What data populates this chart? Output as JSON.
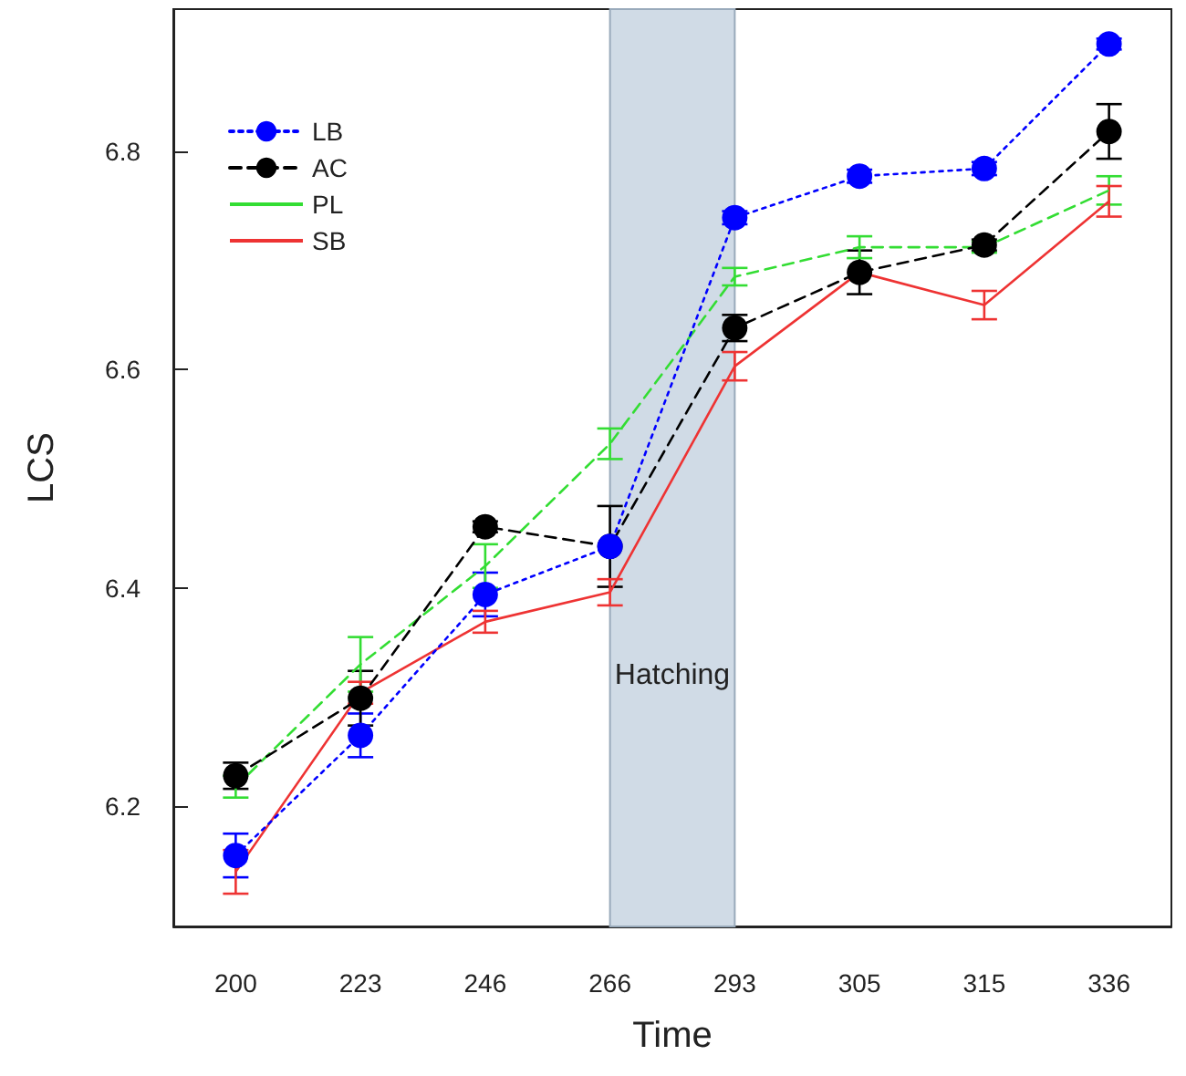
{
  "chart_data": {
    "type": "line",
    "xlabel": "Time",
    "ylabel": "LCS",
    "categories": [
      "200",
      "223",
      "246",
      "266",
      "293",
      "305",
      "315",
      "336"
    ],
    "ylim": [
      6.09,
      6.93
    ],
    "yticks": [
      6.2,
      6.4,
      6.6,
      6.8
    ],
    "grid": false,
    "legend": "top left",
    "bands": [
      {
        "axis": "x",
        "from": "266",
        "to": "293",
        "label": "Hatching",
        "color": "#d0dbe6"
      }
    ],
    "series": [
      {
        "name": "LB",
        "color": "#0000ff",
        "marker": "circle",
        "line_style": "dotted",
        "values": [
          6.155,
          6.265,
          6.394,
          6.438,
          6.739,
          6.777,
          6.784,
          6.898
        ],
        "errors": [
          0.02,
          0.02,
          0.02,
          null,
          0.006,
          0.006,
          0.006,
          0.005
        ]
      },
      {
        "name": "AC",
        "color": "#000000",
        "marker": "circle",
        "line_style": "dashed",
        "values": [
          6.228,
          6.299,
          6.456,
          6.438,
          6.638,
          6.689,
          6.714,
          6.818
        ],
        "errors": [
          0.012,
          0.025,
          0.005,
          0.037,
          0.012,
          0.02,
          0.005,
          0.025
        ]
      },
      {
        "name": "PL",
        "color": "#33dd33",
        "marker": "none",
        "line_style": "dashed",
        "values": [
          6.218,
          6.33,
          6.42,
          6.532,
          6.685,
          6.712,
          6.712,
          6.764
        ],
        "errors": [
          0.01,
          0.025,
          0.02,
          0.014,
          0.008,
          0.01,
          0.005,
          0.013
        ]
      },
      {
        "name": "SB",
        "color": "#ee3333",
        "marker": "none",
        "line_style": "solid",
        "values": [
          6.14,
          6.304,
          6.369,
          6.396,
          6.603,
          6.689,
          6.659,
          6.754
        ],
        "errors": [
          0.02,
          0.01,
          0.01,
          0.012,
          0.013,
          null,
          0.013,
          0.014
        ]
      }
    ]
  }
}
